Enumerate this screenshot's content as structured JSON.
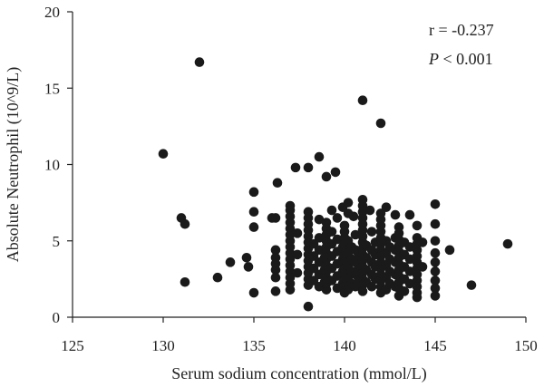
{
  "chart_data": {
    "type": "scatter",
    "xlabel": "Serum sodium concentration (mmol/L)",
    "ylabel": "Absolute Neutrophil (10^9/L)",
    "xlim": [
      125,
      150
    ],
    "ylim": [
      0,
      20
    ],
    "xticks": [
      125,
      130,
      135,
      140,
      145,
      150
    ],
    "yticks": [
      0,
      5,
      10,
      15,
      20
    ],
    "grid": false,
    "legend": "none",
    "point_color": "#1a1a1a",
    "annotations": [
      {
        "text": "r = -0.237",
        "italic_prefix": ""
      },
      {
        "italic_prefix": "P",
        "text": " < 0.001"
      }
    ],
    "points": [
      [
        130,
        10.7
      ],
      [
        131,
        6.5
      ],
      [
        131.2,
        6.1
      ],
      [
        131.2,
        2.3
      ],
      [
        132,
        16.7
      ],
      [
        133,
        2.6
      ],
      [
        133.7,
        3.6
      ],
      [
        134.6,
        3.9
      ],
      [
        134.7,
        3.3
      ],
      [
        135,
        8.2
      ],
      [
        135,
        6.9
      ],
      [
        135,
        5.9
      ],
      [
        135,
        1.6
      ],
      [
        136,
        6.5
      ],
      [
        136.2,
        6.5
      ],
      [
        136.2,
        4.4
      ],
      [
        136.2,
        3.9
      ],
      [
        136.2,
        3.5
      ],
      [
        136.2,
        3.1
      ],
      [
        136.2,
        2.6
      ],
      [
        136.2,
        1.7
      ],
      [
        136.3,
        8.8
      ],
      [
        137,
        7.3
      ],
      [
        137,
        7.0
      ],
      [
        137,
        6.6
      ],
      [
        137,
        6.2
      ],
      [
        137,
        5.8
      ],
      [
        137,
        5.4
      ],
      [
        137,
        5.0
      ],
      [
        137,
        4.6
      ],
      [
        137,
        4.2
      ],
      [
        137,
        3.8
      ],
      [
        137,
        3.4
      ],
      [
        137,
        3.0
      ],
      [
        137,
        2.6
      ],
      [
        137,
        2.2
      ],
      [
        137,
        1.8
      ],
      [
        137.3,
        9.8
      ],
      [
        137.4,
        5.5
      ],
      [
        137.4,
        4.1
      ],
      [
        137.4,
        2.9
      ],
      [
        138,
        9.8
      ],
      [
        138,
        6.9
      ],
      [
        138,
        6.5
      ],
      [
        138,
        6.1
      ],
      [
        138,
        5.7
      ],
      [
        138,
        5.3
      ],
      [
        138,
        4.9
      ],
      [
        138,
        4.5
      ],
      [
        138,
        4.1
      ],
      [
        138,
        3.7
      ],
      [
        138,
        3.3
      ],
      [
        138,
        2.9
      ],
      [
        138,
        2.5
      ],
      [
        138,
        2.1
      ],
      [
        138,
        0.7
      ],
      [
        138.3,
        4.8
      ],
      [
        138.3,
        4.0
      ],
      [
        138.3,
        3.2
      ],
      [
        138.3,
        2.4
      ],
      [
        138.6,
        10.5
      ],
      [
        138.6,
        6.4
      ],
      [
        138.6,
        5.2
      ],
      [
        138.6,
        4.4
      ],
      [
        138.6,
        3.6
      ],
      [
        138.6,
        2.8
      ],
      [
        138.6,
        2.0
      ],
      [
        138.9,
        3.9
      ],
      [
        138.9,
        3.1
      ],
      [
        138.9,
        2.3
      ],
      [
        139,
        9.2
      ],
      [
        139,
        6.2
      ],
      [
        139,
        5.8
      ],
      [
        139,
        5.4
      ],
      [
        139,
        5.0
      ],
      [
        139,
        4.6
      ],
      [
        139,
        4.2
      ],
      [
        139,
        3.8
      ],
      [
        139,
        3.4
      ],
      [
        139,
        3.0
      ],
      [
        139,
        2.6
      ],
      [
        139,
        2.2
      ],
      [
        139,
        1.8
      ],
      [
        139.3,
        7.0
      ],
      [
        139.3,
        5.6
      ],
      [
        139.3,
        4.8
      ],
      [
        139.3,
        4.0
      ],
      [
        139.3,
        3.2
      ],
      [
        139.3,
        2.4
      ],
      [
        139.5,
        9.5
      ],
      [
        139.6,
        6.5
      ],
      [
        139.6,
        5.1
      ],
      [
        139.6,
        4.3
      ],
      [
        139.6,
        3.5
      ],
      [
        139.6,
        2.7
      ],
      [
        139.6,
        1.9
      ],
      [
        139.9,
        7.2
      ],
      [
        139.9,
        4.6
      ],
      [
        139.9,
        3.8
      ],
      [
        139.9,
        3.0
      ],
      [
        139.9,
        2.2
      ],
      [
        140,
        6.0
      ],
      [
        140,
        5.6
      ],
      [
        140,
        5.2
      ],
      [
        140,
        4.8
      ],
      [
        140,
        4.4
      ],
      [
        140,
        4.0
      ],
      [
        140,
        3.6
      ],
      [
        140,
        3.2
      ],
      [
        140,
        2.8
      ],
      [
        140,
        2.4
      ],
      [
        140,
        2.0
      ],
      [
        140,
        1.6
      ],
      [
        140.2,
        7.5
      ],
      [
        140.2,
        6.8
      ],
      [
        140.2,
        5.0
      ],
      [
        140.2,
        4.2
      ],
      [
        140.2,
        3.4
      ],
      [
        140.2,
        2.6
      ],
      [
        140.2,
        1.8
      ],
      [
        140.4,
        4.6
      ],
      [
        140.4,
        3.8
      ],
      [
        140.4,
        3.0
      ],
      [
        140.4,
        2.2
      ],
      [
        140.5,
        6.6
      ],
      [
        140.6,
        5.4
      ],
      [
        140.6,
        4.4
      ],
      [
        140.6,
        3.6
      ],
      [
        140.6,
        2.8
      ],
      [
        140.6,
        2.0
      ],
      [
        140.8,
        4.1
      ],
      [
        140.8,
        3.3
      ],
      [
        140.8,
        2.5
      ],
      [
        141,
        14.2
      ],
      [
        141,
        7.7
      ],
      [
        141,
        7.3
      ],
      [
        141,
        6.9
      ],
      [
        141,
        6.5
      ],
      [
        141,
        6.1
      ],
      [
        141,
        5.7
      ],
      [
        141,
        5.3
      ],
      [
        141,
        4.9
      ],
      [
        141,
        4.5
      ],
      [
        141,
        4.1
      ],
      [
        141,
        3.7
      ],
      [
        141,
        3.3
      ],
      [
        141,
        2.9
      ],
      [
        141,
        2.5
      ],
      [
        141,
        2.1
      ],
      [
        141,
        1.7
      ],
      [
        141.2,
        4.7
      ],
      [
        141.2,
        3.9
      ],
      [
        141.2,
        3.1
      ],
      [
        141.2,
        2.3
      ],
      [
        141.4,
        7.0
      ],
      [
        141.5,
        5.6
      ],
      [
        141.5,
        4.4
      ],
      [
        141.5,
        3.6
      ],
      [
        141.5,
        2.8
      ],
      [
        141.5,
        2.0
      ],
      [
        141.7,
        4.9
      ],
      [
        141.7,
        4.1
      ],
      [
        141.7,
        3.3
      ],
      [
        141.7,
        2.5
      ],
      [
        142,
        12.7
      ],
      [
        142,
        6.8
      ],
      [
        142,
        6.4
      ],
      [
        142,
        6.0
      ],
      [
        142,
        5.6
      ],
      [
        142,
        5.2
      ],
      [
        142,
        4.8
      ],
      [
        142,
        4.4
      ],
      [
        142,
        4.0
      ],
      [
        142,
        3.6
      ],
      [
        142,
        3.2
      ],
      [
        142,
        2.8
      ],
      [
        142,
        2.4
      ],
      [
        142,
        2.0
      ],
      [
        142,
        1.6
      ],
      [
        142.3,
        7.2
      ],
      [
        142.3,
        5.0
      ],
      [
        142.3,
        4.2
      ],
      [
        142.3,
        3.4
      ],
      [
        142.3,
        2.6
      ],
      [
        142.3,
        1.8
      ],
      [
        142.5,
        4.6
      ],
      [
        142.5,
        3.8
      ],
      [
        142.5,
        3.0
      ],
      [
        142.5,
        2.2
      ],
      [
        142.8,
        6.7
      ],
      [
        142.8,
        5.2
      ],
      [
        142.8,
        4.4
      ],
      [
        142.8,
        3.6
      ],
      [
        142.8,
        2.8
      ],
      [
        142.8,
        2.0
      ],
      [
        143,
        5.9
      ],
      [
        143,
        5.5
      ],
      [
        143,
        5.1
      ],
      [
        143,
        4.7
      ],
      [
        143,
        4.3
      ],
      [
        143,
        3.9
      ],
      [
        143,
        3.5
      ],
      [
        143,
        3.1
      ],
      [
        143,
        2.7
      ],
      [
        143,
        2.3
      ],
      [
        143,
        1.9
      ],
      [
        143,
        1.4
      ],
      [
        143.3,
        4.9
      ],
      [
        143.3,
        4.1
      ],
      [
        143.3,
        3.3
      ],
      [
        143.3,
        2.5
      ],
      [
        143.3,
        1.7
      ],
      [
        143.6,
        6.7
      ],
      [
        143.6,
        4.6
      ],
      [
        143.6,
        3.8
      ],
      [
        143.6,
        3.0
      ],
      [
        143.6,
        2.2
      ],
      [
        144,
        6.0
      ],
      [
        144,
        5.2
      ],
      [
        144,
        4.8
      ],
      [
        144,
        4.4
      ],
      [
        144,
        4.0
      ],
      [
        144,
        3.6
      ],
      [
        144,
        3.2
      ],
      [
        144,
        2.8
      ],
      [
        144,
        2.4
      ],
      [
        144,
        2.0
      ],
      [
        144,
        1.6
      ],
      [
        144,
        1.3
      ],
      [
        144.3,
        4.9
      ],
      [
        144.3,
        3.3
      ],
      [
        145,
        7.4
      ],
      [
        145,
        6.1
      ],
      [
        145,
        5.0
      ],
      [
        145,
        4.2
      ],
      [
        145,
        3.6
      ],
      [
        145,
        3.0
      ],
      [
        145,
        2.4
      ],
      [
        145,
        1.9
      ],
      [
        145,
        1.4
      ],
      [
        145.8,
        4.4
      ],
      [
        147,
        2.1
      ],
      [
        149,
        4.8
      ]
    ]
  }
}
